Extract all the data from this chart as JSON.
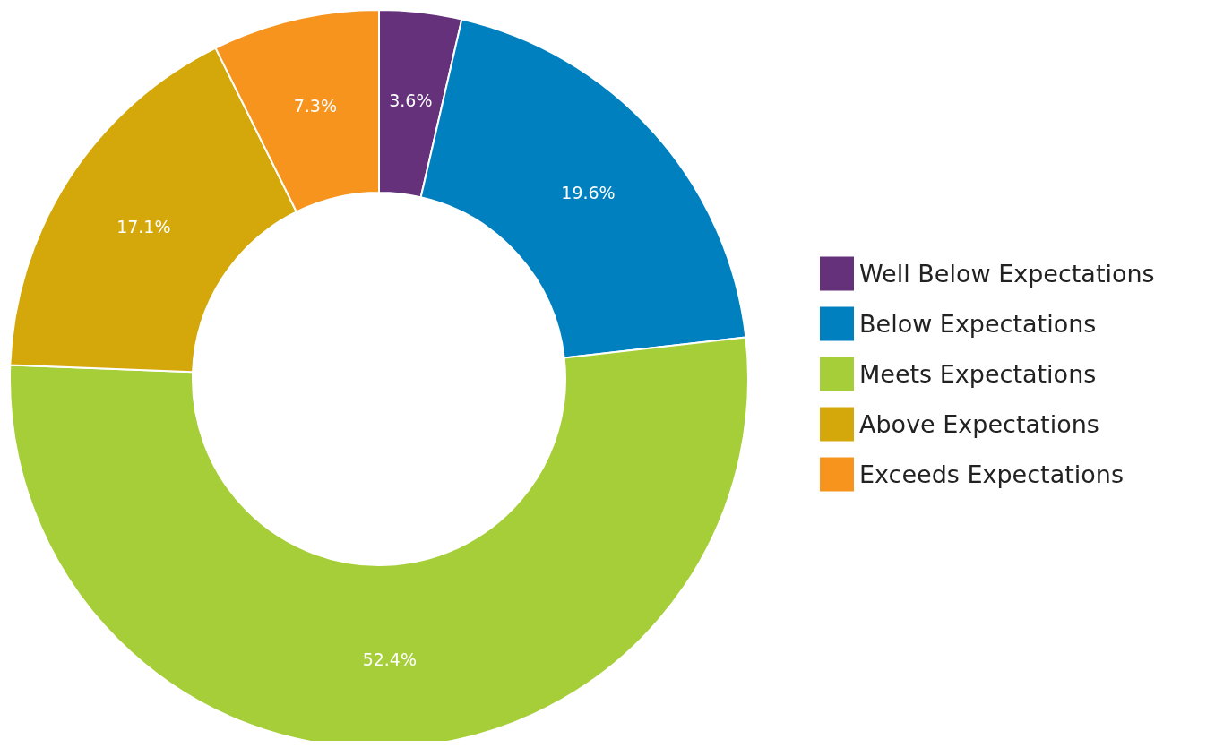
{
  "chart_data": {
    "type": "donut",
    "categories": [
      "Well Below Expectations",
      "Below Expectations",
      "Meets Expectations",
      "Above Expectations",
      "Exceeds Expectations"
    ],
    "values": [
      3.6,
      19.6,
      52.4,
      17.1,
      7.3
    ],
    "value_labels": [
      "3.6%",
      "19.6%",
      "52.4%",
      "17.1%",
      "7.3%"
    ],
    "colors": [
      "#65317a",
      "#0080bf",
      "#a6ce39",
      "#d4a80a",
      "#f7941d"
    ],
    "legend": "right"
  }
}
